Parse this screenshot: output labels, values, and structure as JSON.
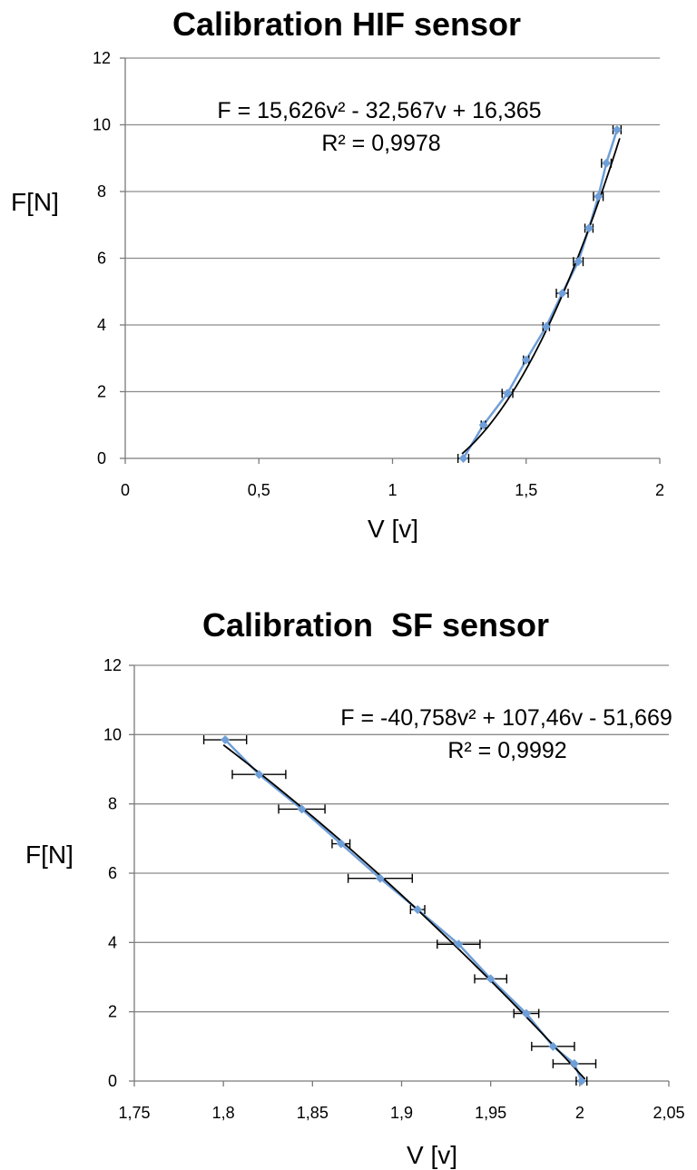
{
  "chart_data": [
    {
      "type": "scatter",
      "title": "Calibration HIF sensor",
      "xlabel": "V [v]",
      "ylabel": "F[N]",
      "xlim": [
        0,
        2
      ],
      "ylim": [
        0,
        12
      ],
      "xticks": [
        "0",
        "0,5",
        "1",
        "1,5",
        "2"
      ],
      "yticks": [
        "0",
        "2",
        "4",
        "6",
        "8",
        "10",
        "12"
      ],
      "grid": "horizontal",
      "colors": {
        "points": "#6f9fd8",
        "trend": "#000000",
        "errorbar": "#000000",
        "grid": "#8c8c8c"
      },
      "series": [
        {
          "x": [
            1.265,
            1.34,
            1.43,
            1.5,
            1.575,
            1.635,
            1.695,
            1.735,
            1.77,
            1.8,
            1.84
          ],
          "y": [
            0.0,
            1.0,
            1.95,
            2.95,
            3.95,
            4.95,
            5.9,
            6.9,
            7.85,
            8.85,
            9.85
          ],
          "xerr": [
            0.02,
            0.008,
            0.02,
            0.01,
            0.012,
            0.022,
            0.018,
            0.015,
            0.018,
            0.018,
            0.015
          ]
        }
      ],
      "trendline": {
        "a": 15.626,
        "b": -32.567,
        "c": 16.365,
        "x_range": [
          1.26,
          1.85
        ]
      },
      "equation": "F = 15,626v² - 32,567v + 16,365",
      "r_squared": "R² = 0,9978"
    },
    {
      "type": "scatter",
      "title": "Calibration  SF sensor",
      "xlabel": "V [v]",
      "ylabel": "F[N]",
      "xlim": [
        1.75,
        2.05
      ],
      "ylim": [
        0,
        12
      ],
      "xticks": [
        "1,75",
        "1,8",
        "1,85",
        "1,9",
        "1,95",
        "2",
        "2,05"
      ],
      "yticks": [
        "0",
        "2",
        "4",
        "6",
        "8",
        "10",
        "12"
      ],
      "grid": "horizontal",
      "colors": {
        "points": "#6f9fd8",
        "trend": "#000000",
        "errorbar": "#000000",
        "grid": "#8c8c8c"
      },
      "series": [
        {
          "x": [
            2.001,
            1.997,
            1.985,
            1.97,
            1.95,
            1.932,
            1.909,
            1.888,
            1.866,
            1.844,
            1.82,
            1.801
          ],
          "y": [
            0.0,
            0.5,
            1.0,
            1.95,
            2.95,
            3.95,
            4.95,
            5.85,
            6.85,
            7.85,
            8.85,
            9.85
          ],
          "xerr": [
            0.003,
            0.012,
            0.012,
            0.007,
            0.009,
            0.012,
            0.004,
            0.018,
            0.005,
            0.013,
            0.015,
            0.012
          ]
        }
      ],
      "trendline": {
        "a": -40.758,
        "b": 107.46,
        "c": -51.669,
        "x_range": [
          1.8,
          2.003
        ]
      },
      "equation": "F = -40,758v² + 107,46v - 51,669",
      "r_squared": "R² = 0,9992"
    }
  ]
}
